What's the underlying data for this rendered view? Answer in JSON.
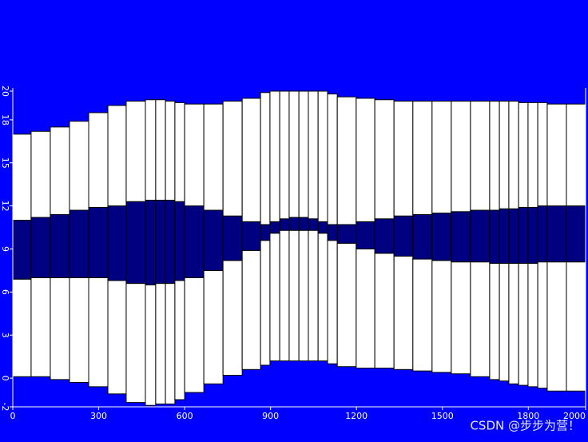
{
  "chart_data": {
    "type": "layers",
    "background": "#0000ff",
    "layer_color": "#ffffff",
    "band_color": "#000080",
    "outline": "#000000",
    "axis_color": "#ffffff",
    "xlim": [
      0,
      2000
    ],
    "ylim": [
      -2,
      20
    ],
    "xticks": [
      0,
      300,
      600,
      900,
      1200,
      1500,
      1800,
      2000
    ],
    "yticks": [
      -2,
      0,
      3,
      6,
      9,
      12,
      15,
      18,
      20
    ],
    "x_edges": [
      0,
      64,
      131,
      198,
      265,
      332,
      396,
      463,
      499,
      533,
      566,
      600,
      667,
      734,
      801,
      865,
      898,
      932,
      965,
      999,
      1032,
      1066,
      1099,
      1133,
      1199,
      1264,
      1331,
      1397,
      1464,
      1531,
      1598,
      1665,
      1699,
      1732,
      1766,
      1799,
      1833,
      1866,
      1933,
      2000
    ],
    "base": [
      0.1,
      0.1,
      -0.1,
      -0.3,
      -0.6,
      -1.1,
      -1.7,
      -1.9,
      -1.8,
      -1.8,
      -1.5,
      -1.0,
      -0.4,
      0.2,
      0.6,
      0.9,
      1.2,
      1.2,
      1.2,
      1.2,
      1.2,
      1.2,
      1.0,
      0.8,
      0.7,
      0.7,
      0.6,
      0.5,
      0.4,
      0.3,
      0.1,
      -0.1,
      -0.2,
      -0.4,
      -0.5,
      -0.6,
      -0.7,
      -0.9,
      -0.9
    ],
    "band_bottom": [
      6.9,
      7.0,
      7.0,
      7.0,
      7.0,
      6.8,
      6.6,
      6.5,
      6.6,
      6.6,
      6.8,
      7.0,
      7.5,
      8.2,
      8.9,
      9.6,
      10.1,
      10.3,
      10.3,
      10.3,
      10.3,
      10.1,
      9.6,
      9.4,
      9.0,
      8.7,
      8.5,
      8.3,
      8.2,
      8.1,
      8.1,
      8.0,
      8.0,
      8.0,
      8.0,
      8.0,
      8.1,
      8.1,
      8.1
    ],
    "band_top": [
      11.0,
      11.2,
      11.4,
      11.7,
      11.9,
      12.0,
      12.3,
      12.4,
      12.4,
      12.4,
      12.3,
      12.0,
      11.7,
      11.3,
      10.9,
      10.7,
      10.9,
      11.1,
      11.2,
      11.2,
      11.1,
      10.9,
      10.7,
      10.7,
      10.9,
      11.1,
      11.3,
      11.4,
      11.5,
      11.6,
      11.7,
      11.7,
      11.8,
      11.8,
      11.9,
      11.9,
      12.0,
      12.0,
      12.0
    ],
    "top": [
      17.0,
      17.2,
      17.5,
      17.9,
      18.5,
      19.0,
      19.3,
      19.4,
      19.4,
      19.3,
      19.2,
      19.1,
      19.1,
      19.3,
      19.5,
      19.9,
      20.0,
      20.0,
      20.0,
      20.0,
      20.0,
      20.0,
      19.8,
      19.6,
      19.5,
      19.4,
      19.3,
      19.3,
      19.3,
      19.3,
      19.3,
      19.3,
      19.3,
      19.3,
      19.2,
      19.2,
      19.2,
      19.1,
      19.1
    ],
    "watermark": "CSDN @步步为营！"
  }
}
